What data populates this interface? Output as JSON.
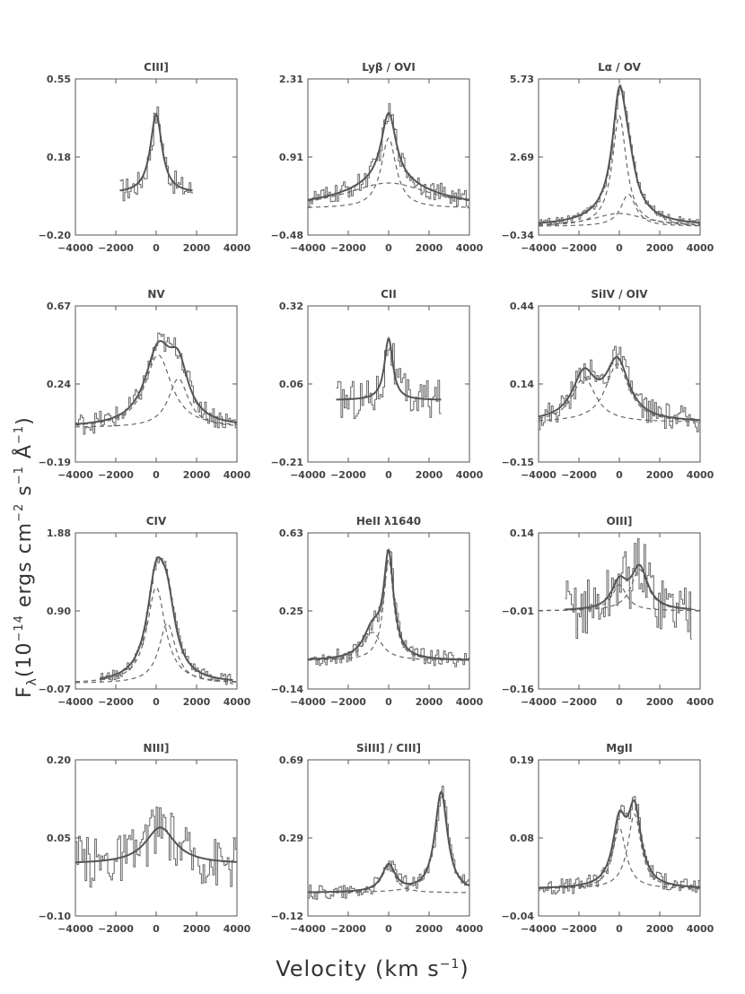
{
  "figure": {
    "x_axis_title": "Velocity (km s",
    "x_axis_title_sup": "−1",
    "x_axis_title_end": ")",
    "y_axis_title_main": "F",
    "y_axis_title_sub": "λ",
    "y_axis_title_rest": "(10",
    "y_axis_title_exp": "−14",
    "y_axis_title_units": " ergs cm",
    "y_axis_title_units_exp1": "−2",
    "y_axis_title_units2": " s",
    "y_axis_title_units_exp2": "−1",
    "y_axis_title_units3": " Å",
    "y_axis_title_units_exp3": "−1",
    "y_axis_title_end": ")"
  },
  "chart_data": [
    {
      "type": "line",
      "title": "CIII]",
      "ylim": [
        -0.2,
        0.55
      ],
      "yticks": [
        "0.55",
        "0.18",
        "−0.20"
      ],
      "xlim": [
        -4000,
        4000
      ],
      "xticks": [
        "−4000",
        "−2000",
        "0",
        "2000",
        "4000"
      ],
      "data_range": [
        -1800,
        1800
      ],
      "noise": 0.06,
      "baseline": 0.0,
      "components": [
        {
          "center": 0,
          "width": 350,
          "amp": 0.38
        }
      ],
      "dashed": false
    },
    {
      "type": "line",
      "title": "Lyβ / OVI",
      "ylim": [
        -0.48,
        2.31
      ],
      "yticks": [
        "2.31",
        "0.91",
        "−0.48"
      ],
      "xlim": [
        -4000,
        4000
      ],
      "xticks": [
        "−4000",
        "−2000",
        "0",
        "2000",
        "4000"
      ],
      "data_range": [
        -4000,
        4000
      ],
      "noise": 0.18,
      "baseline": 0.0,
      "components": [
        {
          "center": 0,
          "width": 450,
          "amp": 1.25
        },
        {
          "center": 0,
          "width": 2600,
          "amp": 0.45
        }
      ],
      "dashed": true
    },
    {
      "type": "line",
      "title": "Lα / OV",
      "ylim": [
        -0.34,
        5.73
      ],
      "yticks": [
        "5.73",
        "2.69",
        "−0.34"
      ],
      "xlim": [
        -4000,
        4000
      ],
      "xticks": [
        "−4000",
        "−2000",
        "0",
        "2000",
        "4000"
      ],
      "data_range": [
        -4000,
        4000
      ],
      "noise": 0.15,
      "baseline": 0.0,
      "components": [
        {
          "center": 0,
          "width": 420,
          "amp": 4.3
        },
        {
          "center": 450,
          "width": 450,
          "amp": 1.25
        },
        {
          "center": 0,
          "width": 1600,
          "amp": 0.5
        }
      ],
      "dashed": true
    },
    {
      "type": "line",
      "title": "NV",
      "ylim": [
        -0.19,
        0.67
      ],
      "yticks": [
        "0.67",
        "0.24",
        "−0.19"
      ],
      "xlim": [
        -4000,
        4000
      ],
      "xticks": [
        "−4000",
        "−2000",
        "0",
        "2000",
        "4000"
      ],
      "data_range": [
        -4000,
        4000
      ],
      "noise": 0.06,
      "baseline": 0.0,
      "components": [
        {
          "center": 100,
          "width": 800,
          "amp": 0.4
        },
        {
          "center": 1100,
          "width": 600,
          "amp": 0.27
        }
      ],
      "dashed": true
    },
    {
      "type": "line",
      "title": "CII",
      "ylim": [
        -0.21,
        0.32
      ],
      "yticks": [
        "0.32",
        "0.06",
        "−0.21"
      ],
      "xlim": [
        -4000,
        4000
      ],
      "xticks": [
        "−4000",
        "−2000",
        "0",
        "2000",
        "4000"
      ],
      "data_range": [
        -2600,
        2600
      ],
      "noise": 0.07,
      "baseline": 0.0,
      "components": [
        {
          "center": 0,
          "width": 250,
          "amp": 0.21
        }
      ],
      "dashed": false
    },
    {
      "type": "line",
      "title": "SiIV / OIV",
      "ylim": [
        -0.15,
        0.44
      ],
      "yticks": [
        "0.44",
        "0.14",
        "−0.15"
      ],
      "xlim": [
        -4000,
        4000
      ],
      "xticks": [
        "−4000",
        "−2000",
        "0",
        "2000",
        "4000"
      ],
      "data_range": [
        -4000,
        4000
      ],
      "noise": 0.05,
      "baseline": 0.0,
      "components": [
        {
          "center": -1750,
          "width": 700,
          "amp": 0.17
        },
        {
          "center": -100,
          "width": 700,
          "amp": 0.22
        }
      ],
      "dashed": true
    },
    {
      "type": "line",
      "title": "CIV",
      "ylim": [
        -0.07,
        1.88
      ],
      "yticks": [
        "1.88",
        "0.90",
        "−0.07"
      ],
      "xlim": [
        -4000,
        4000
      ],
      "xticks": [
        "−4000",
        "−2000",
        "0",
        "2000",
        "4000"
      ],
      "data_range": [
        -2800,
        3800
      ],
      "noise": 0.07,
      "baseline": 0.0,
      "components": [
        {
          "center": 0,
          "width": 550,
          "amp": 1.2
        },
        {
          "center": 550,
          "width": 500,
          "amp": 0.75
        }
      ],
      "dashed": true
    },
    {
      "type": "line",
      "title": "HeII λ1640",
      "ylim": [
        -0.14,
        0.63
      ],
      "yticks": [
        "0.63",
        "0.25",
        "−0.14"
      ],
      "xlim": [
        -4000,
        4000
      ],
      "xticks": [
        "−4000",
        "−2000",
        "0",
        "2000",
        "4000"
      ],
      "data_range": [
        -4000,
        4000
      ],
      "noise": 0.04,
      "baseline": 0.0,
      "components": [
        {
          "center": 0,
          "width": 300,
          "amp": 0.5
        },
        {
          "center": -800,
          "width": 550,
          "amp": 0.14
        }
      ],
      "dashed": true
    },
    {
      "type": "line",
      "title": "OIII]",
      "ylim": [
        -0.16,
        0.14
      ],
      "yticks": [
        "0.14",
        "−0.01",
        "−0.16"
      ],
      "xlim": [
        -4000,
        4000
      ],
      "xticks": [
        "−4000",
        "−2000",
        "0",
        "2000",
        "4000"
      ],
      "data_range": [
        -2700,
        3600
      ],
      "noise": 0.06,
      "baseline": -0.01,
      "components": [
        {
          "center": 0,
          "width": 450,
          "amp": 0.05
        },
        {
          "center": 1000,
          "width": 500,
          "amp": 0.08
        }
      ],
      "dashed": true
    },
    {
      "type": "line",
      "title": "NIII]",
      "ylim": [
        -0.1,
        0.2
      ],
      "yticks": [
        "0.20",
        "0.05",
        "−0.10"
      ],
      "xlim": [
        -4000,
        4000
      ],
      "xticks": [
        "−4000",
        "−2000",
        "0",
        "2000",
        "4000"
      ],
      "data_range": [
        -4000,
        4000
      ],
      "noise": 0.05,
      "baseline": 0.0,
      "components": [
        {
          "center": 200,
          "width": 900,
          "amp": 0.07
        }
      ],
      "dashed": false
    },
    {
      "type": "line",
      "title": "SiIII] / CIII]",
      "ylim": [
        -0.12,
        0.69
      ],
      "yticks": [
        "0.69",
        "0.29",
        "−0.12"
      ],
      "xlim": [
        -4000,
        4000
      ],
      "xticks": [
        "−4000",
        "−2000",
        "0",
        "2000",
        "4000"
      ],
      "data_range": [
        -4000,
        4000
      ],
      "noise": 0.04,
      "baseline": 0.0,
      "components": [
        {
          "center": 0,
          "width": 400,
          "amp": 0.14
        },
        {
          "center": 2600,
          "width": 380,
          "amp": 0.52
        }
      ],
      "dashed": true
    },
    {
      "type": "line",
      "title": "MgII",
      "ylim": [
        -0.04,
        0.19
      ],
      "yticks": [
        "0.19",
        "0.08",
        "−0.04"
      ],
      "xlim": [
        -4000,
        4000
      ],
      "xticks": [
        "−4000",
        "−2000",
        "0",
        "2000",
        "4000"
      ],
      "data_range": [
        -4000,
        4000
      ],
      "noise": 0.012,
      "baseline": 0.0,
      "components": [
        {
          "center": 0,
          "width": 400,
          "amp": 0.09
        },
        {
          "center": 750,
          "width": 400,
          "amp": 0.11
        }
      ],
      "dashed": true
    }
  ]
}
